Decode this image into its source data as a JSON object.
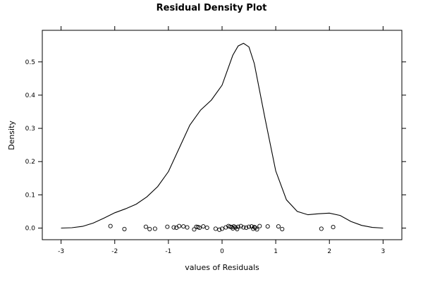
{
  "chart_data": {
    "type": "line",
    "title": "Residual Density Plot",
    "xlabel": "values of Residuals",
    "ylabel": "Density",
    "xlim": [
      -3.35,
      3.35
    ],
    "ylim": [
      -0.035,
      0.595
    ],
    "x_ticks": [
      -3,
      -2,
      -1,
      0,
      1,
      2,
      3
    ],
    "y_ticks": [
      0.0,
      0.1,
      0.2,
      0.3,
      0.4,
      0.5
    ],
    "x_tick_labels": [
      "-3",
      "-2",
      "-1",
      "0",
      "1",
      "2",
      "3"
    ],
    "y_tick_labels": [
      "0.0",
      "0.1",
      "0.2",
      "0.3",
      "0.4",
      "0.5"
    ],
    "grid": false,
    "series": [
      {
        "values": [
          [
            -3.0,
            0.0
          ],
          [
            -2.8,
            0.001
          ],
          [
            -2.6,
            0.005
          ],
          [
            -2.4,
            0.015
          ],
          [
            -2.2,
            0.03
          ],
          [
            -2.0,
            0.046
          ],
          [
            -1.8,
            0.058
          ],
          [
            -1.6,
            0.072
          ],
          [
            -1.4,
            0.094
          ],
          [
            -1.2,
            0.125
          ],
          [
            -1.0,
            0.17
          ],
          [
            -0.8,
            0.24
          ],
          [
            -0.6,
            0.31
          ],
          [
            -0.4,
            0.355
          ],
          [
            -0.2,
            0.385
          ],
          [
            0.0,
            0.43
          ],
          [
            0.2,
            0.52
          ],
          [
            0.3,
            0.548
          ],
          [
            0.4,
            0.556
          ],
          [
            0.5,
            0.545
          ],
          [
            0.6,
            0.495
          ],
          [
            0.8,
            0.33
          ],
          [
            1.0,
            0.172
          ],
          [
            1.2,
            0.085
          ],
          [
            1.4,
            0.05
          ],
          [
            1.6,
            0.04
          ],
          [
            1.8,
            0.043
          ],
          [
            2.0,
            0.045
          ],
          [
            2.2,
            0.038
          ],
          [
            2.4,
            0.02
          ],
          [
            2.6,
            0.008
          ],
          [
            2.8,
            0.002
          ],
          [
            3.0,
            0.0
          ]
        ]
      }
    ],
    "rug": {
      "x": [
        -2.08,
        -1.82,
        -1.42,
        -1.35,
        -1.25,
        -1.02,
        -0.9,
        -0.85,
        -0.8,
        -0.72,
        -0.65,
        -0.52,
        -0.48,
        -0.45,
        -0.42,
        -0.35,
        -0.28,
        -0.12,
        -0.05,
        0.0,
        0.07,
        0.12,
        0.15,
        0.18,
        0.2,
        0.22,
        0.25,
        0.28,
        0.3,
        0.35,
        0.4,
        0.45,
        0.5,
        0.55,
        0.58,
        0.6,
        0.62,
        0.65,
        0.7,
        0.85,
        1.05,
        1.12,
        1.85,
        2.07
      ],
      "y": [
        0.006,
        -0.003,
        0.004,
        -0.003,
        -0.002,
        0.004,
        0.002,
        0.001,
        0.006,
        0.005,
        0.002,
        -0.004,
        0.004,
        0.003,
        0.001,
        0.005,
        0.001,
        -0.002,
        -0.005,
        -0.002,
        0.002,
        0.006,
        0.004,
        0.003,
        -0.001,
        0.005,
        0.002,
        -0.003,
        0.004,
        0.006,
        0.002,
        0.001,
        0.004,
        0.005,
        -0.002,
        0.003,
        0.001,
        -0.004,
        0.006,
        0.005,
        0.005,
        -0.003,
        -0.002,
        0.003
      ]
    }
  }
}
